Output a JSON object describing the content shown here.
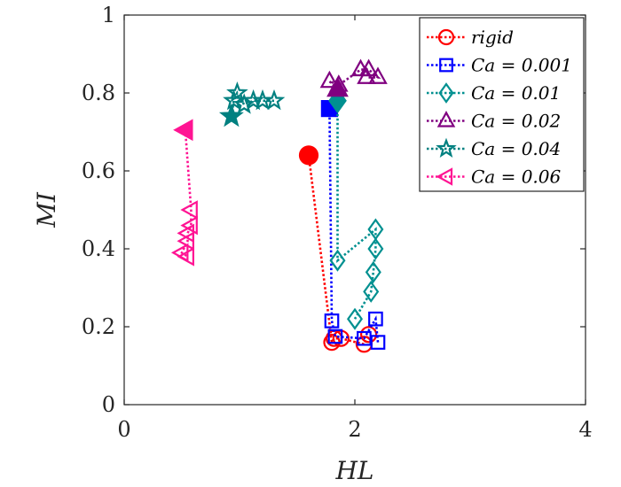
{
  "chart_data": {
    "type": "scatter",
    "xlabel": "HL",
    "ylabel": "MI",
    "xlim": [
      0,
      4
    ],
    "ylim": [
      0,
      1
    ],
    "x_ticks": [
      "0",
      "2",
      "4"
    ],
    "y_ticks": [
      "0",
      "0.2",
      "0.4",
      "0.6",
      "0.8",
      "1"
    ],
    "grid": false,
    "legend_position": "top-right",
    "series": [
      {
        "name": "rigid",
        "legend": "rigid",
        "color": "#ff0000",
        "marker": "circle",
        "start": {
          "x": 1.6,
          "y": 0.64
        },
        "points": [
          {
            "x": 1.8,
            "y": 0.16
          },
          {
            "x": 1.82,
            "y": 0.17
          },
          {
            "x": 1.88,
            "y": 0.17
          },
          {
            "x": 2.08,
            "y": 0.155
          },
          {
            "x": 2.12,
            "y": 0.18
          }
        ]
      },
      {
        "name": "Ca = 0.001",
        "legend": "Ca = 0.001",
        "color": "#0000ff",
        "marker": "square",
        "start": {
          "x": 1.78,
          "y": 0.76
        },
        "points": [
          {
            "x": 1.8,
            "y": 0.215
          },
          {
            "x": 1.83,
            "y": 0.175
          },
          {
            "x": 2.08,
            "y": 0.17
          },
          {
            "x": 2.18,
            "y": 0.22
          },
          {
            "x": 2.2,
            "y": 0.16
          }
        ]
      },
      {
        "name": "Ca = 0.01",
        "legend": "Ca = 0.01",
        "color": "#009090",
        "marker": "diamond",
        "start": {
          "x": 1.85,
          "y": 0.78
        },
        "points": [
          {
            "x": 1.85,
            "y": 0.37
          },
          {
            "x": 2.18,
            "y": 0.45
          },
          {
            "x": 2.18,
            "y": 0.4
          },
          {
            "x": 2.16,
            "y": 0.34
          },
          {
            "x": 2.14,
            "y": 0.29
          },
          {
            "x": 2.0,
            "y": 0.22
          }
        ]
      },
      {
        "name": "Ca = 0.02",
        "legend": "Ca = 0.02",
        "color": "#800080",
        "marker": "triangle-up",
        "start": {
          "x": 1.85,
          "y": 0.81
        },
        "points": [
          {
            "x": 1.78,
            "y": 0.83
          },
          {
            "x": 1.86,
            "y": 0.82
          },
          {
            "x": 2.05,
            "y": 0.86
          },
          {
            "x": 2.12,
            "y": 0.86
          },
          {
            "x": 2.2,
            "y": 0.84
          },
          {
            "x": 2.1,
            "y": 0.84
          }
        ]
      },
      {
        "name": "Ca = 0.04",
        "legend": "Ca = 0.04",
        "color": "#008080",
        "marker": "star",
        "start": {
          "x": 0.93,
          "y": 0.74
        },
        "points": [
          {
            "x": 0.95,
            "y": 0.78
          },
          {
            "x": 0.98,
            "y": 0.8
          },
          {
            "x": 1.04,
            "y": 0.77
          },
          {
            "x": 1.12,
            "y": 0.78
          },
          {
            "x": 1.2,
            "y": 0.78
          },
          {
            "x": 1.3,
            "y": 0.78
          }
        ]
      },
      {
        "name": "Ca = 0.06",
        "legend": "Ca = 0.06",
        "color": "#ff1493",
        "marker": "triangle-left",
        "start": {
          "x": 0.53,
          "y": 0.705
        },
        "points": [
          {
            "x": 0.58,
            "y": 0.5
          },
          {
            "x": 0.58,
            "y": 0.46
          },
          {
            "x": 0.55,
            "y": 0.44
          },
          {
            "x": 0.55,
            "y": 0.42
          },
          {
            "x": 0.5,
            "y": 0.39
          },
          {
            "x": 0.55,
            "y": 0.38
          }
        ]
      }
    ]
  }
}
